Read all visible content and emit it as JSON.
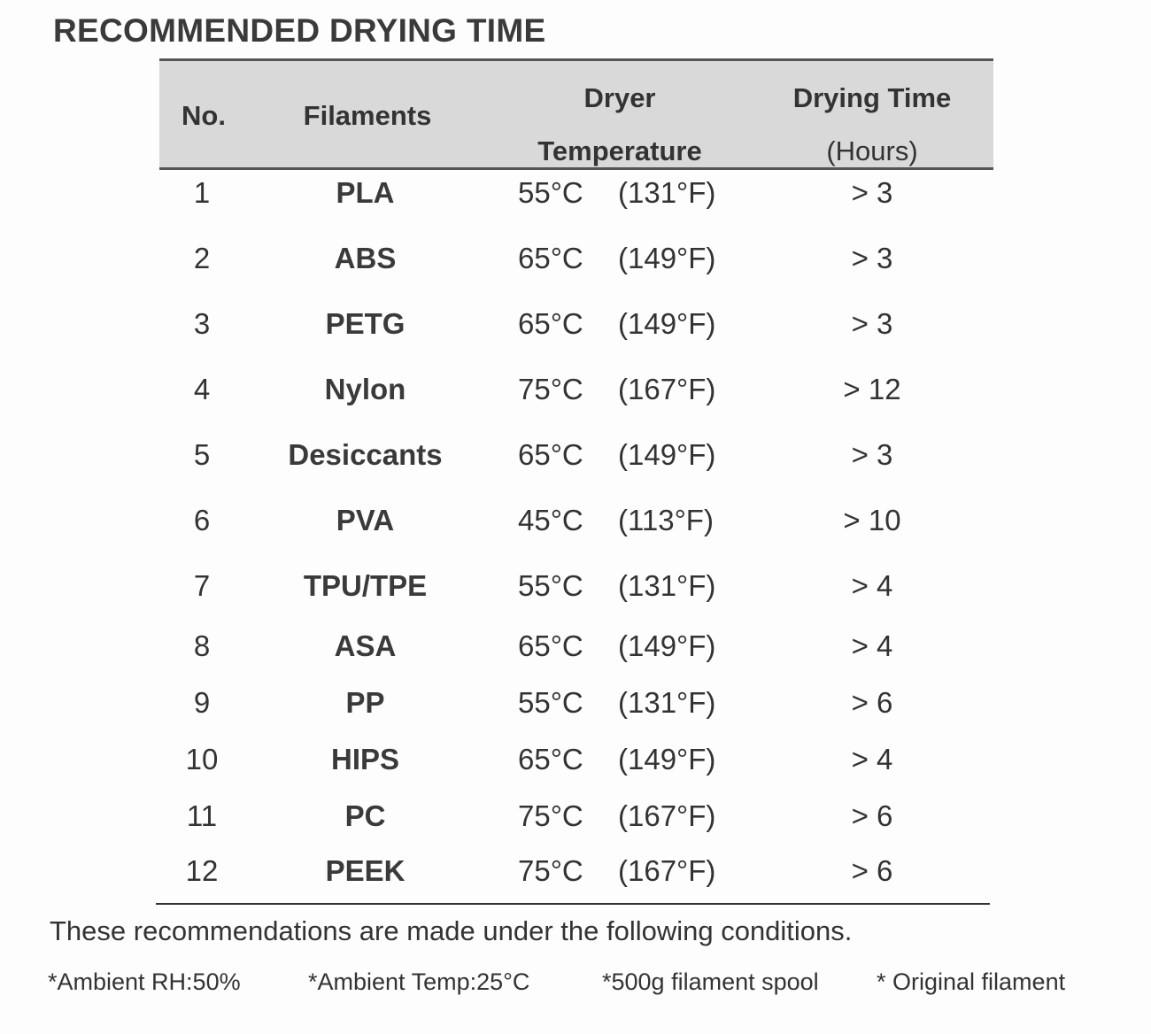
{
  "title": "RECOMMENDED DRYING TIME",
  "headers": {
    "no": "No.",
    "filaments": "Filaments",
    "temp_line1": "Dryer",
    "temp_line2": "Temperature",
    "time_line1": "Drying Time",
    "time_line2": "(Hours)"
  },
  "rows": [
    {
      "no": "1",
      "filament": "PLA",
      "temp_c": "55°C",
      "temp_f": "(131°F)",
      "time": "> 3"
    },
    {
      "no": "2",
      "filament": "ABS",
      "temp_c": "65°C",
      "temp_f": "(149°F)",
      "time": "> 3"
    },
    {
      "no": "3",
      "filament": "PETG",
      "temp_c": "65°C",
      "temp_f": "(149°F)",
      "time": "> 3"
    },
    {
      "no": "4",
      "filament": "Nylon",
      "temp_c": "75°C",
      "temp_f": "(167°F)",
      "time": "> 12"
    },
    {
      "no": "5",
      "filament": "Desiccants",
      "temp_c": "65°C",
      "temp_f": "(149°F)",
      "time": "> 3"
    },
    {
      "no": "6",
      "filament": "PVA",
      "temp_c": "45°C",
      "temp_f": "(113°F)",
      "time": "> 10"
    },
    {
      "no": "7",
      "filament": "TPU/TPE",
      "temp_c": "55°C",
      "temp_f": "(131°F)",
      "time": "> 4"
    },
    {
      "no": "8",
      "filament": "ASA",
      "temp_c": "65°C",
      "temp_f": "(149°F)",
      "time": "> 4"
    },
    {
      "no": "9",
      "filament": "PP",
      "temp_c": "55°C",
      "temp_f": "(131°F)",
      "time": "> 6"
    },
    {
      "no": "10",
      "filament": "HIPS",
      "temp_c": "65°C",
      "temp_f": "(149°F)",
      "time": "> 4"
    },
    {
      "no": "11",
      "filament": "PC",
      "temp_c": "75°C",
      "temp_f": "(167°F)",
      "time": "> 6"
    },
    {
      "no": "12",
      "filament": "PEEK",
      "temp_c": "75°C",
      "temp_f": "(167°F)",
      "time": "> 6"
    }
  ],
  "note": "These recommendations are made under the following conditions.",
  "conditions": [
    "*Ambient RH:50%",
    "*Ambient Temp:25°C",
    "*500g filament spool",
    "* Original filament"
  ]
}
